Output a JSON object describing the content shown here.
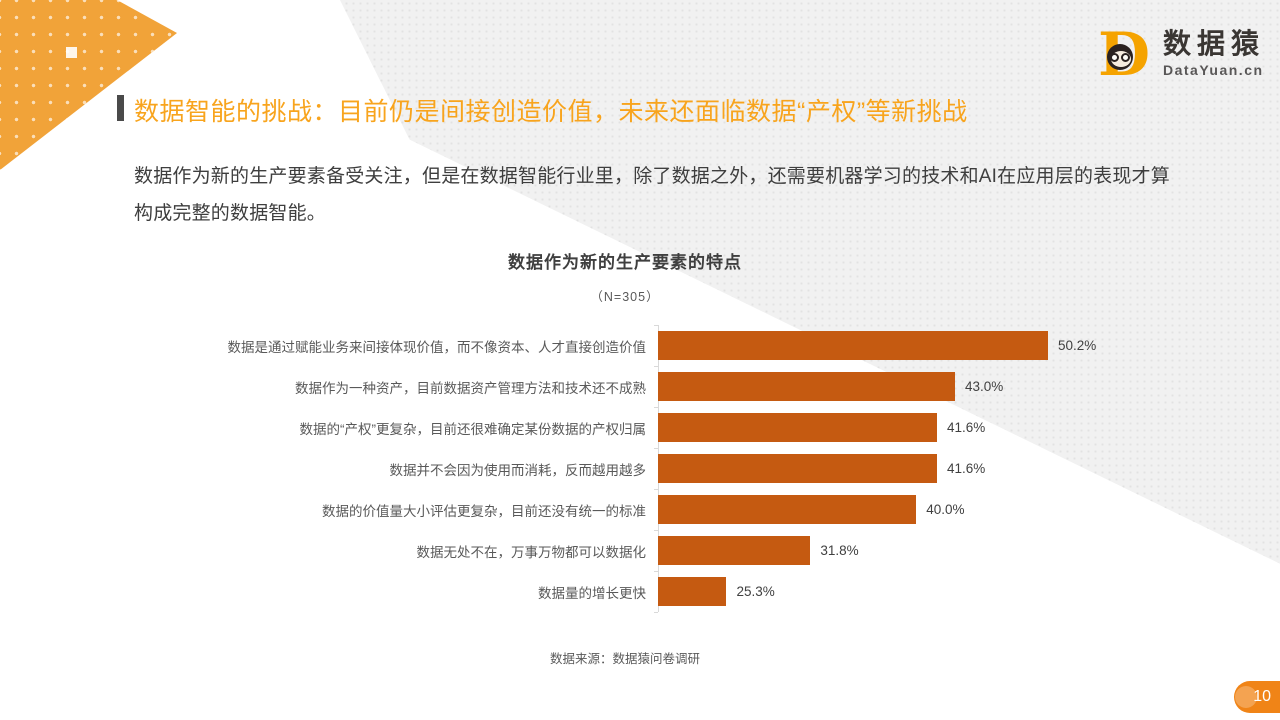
{
  "page": {
    "headline": "数据智能的挑战：目前仍是间接创造价值，未来还面临数据“产权”等新挑战",
    "body_paragraph": "数据作为新的生产要素备受关注，但是在数据智能行业里，除了数据之外，还需要机器学习的技术和AI在应用层的表现才算构成完整的数据智能。",
    "page_number": "10"
  },
  "logo": {
    "brand_letter": "D",
    "brand_name": "数据猿",
    "brand_domain": "DataYuan.cn"
  },
  "chart_data": {
    "type": "bar",
    "orientation": "horizontal",
    "title": "数据作为新的生产要素的特点",
    "subtitle": "（N=305）",
    "categories": [
      "数据是通过赋能业务来间接体现价值，而不像资本、人才直接创造价值",
      "数据作为一种资产，目前数据资产管理方法和技术还不成熟",
      "数据的“产权”更复杂，目前还很难确定某份数据的产权归属",
      "数据并不会因为使用而消耗，反而越用越多",
      "数据的价值量大小评估更复杂，目前还没有统一的标准",
      "数据无处不在，万事万物都可以数据化",
      "数据量的增长更快"
    ],
    "values": [
      50.2,
      43.0,
      41.6,
      41.6,
      40.0,
      31.8,
      25.3
    ],
    "value_labels": [
      "50.2%",
      "43.0%",
      "41.6%",
      "41.6%",
      "40.0%",
      "31.8%",
      "25.3%"
    ],
    "xlim": [
      20,
      55
    ],
    "grid": false,
    "legend": "none",
    "source": "数据来源：数据猿问卷调研"
  },
  "colors": {
    "bar": "#c55a11",
    "headline_accent": "#f8a41d",
    "corner_triangle": "#f1a339",
    "badge": "#f08417",
    "background_wedge": "#f1f1f1"
  }
}
